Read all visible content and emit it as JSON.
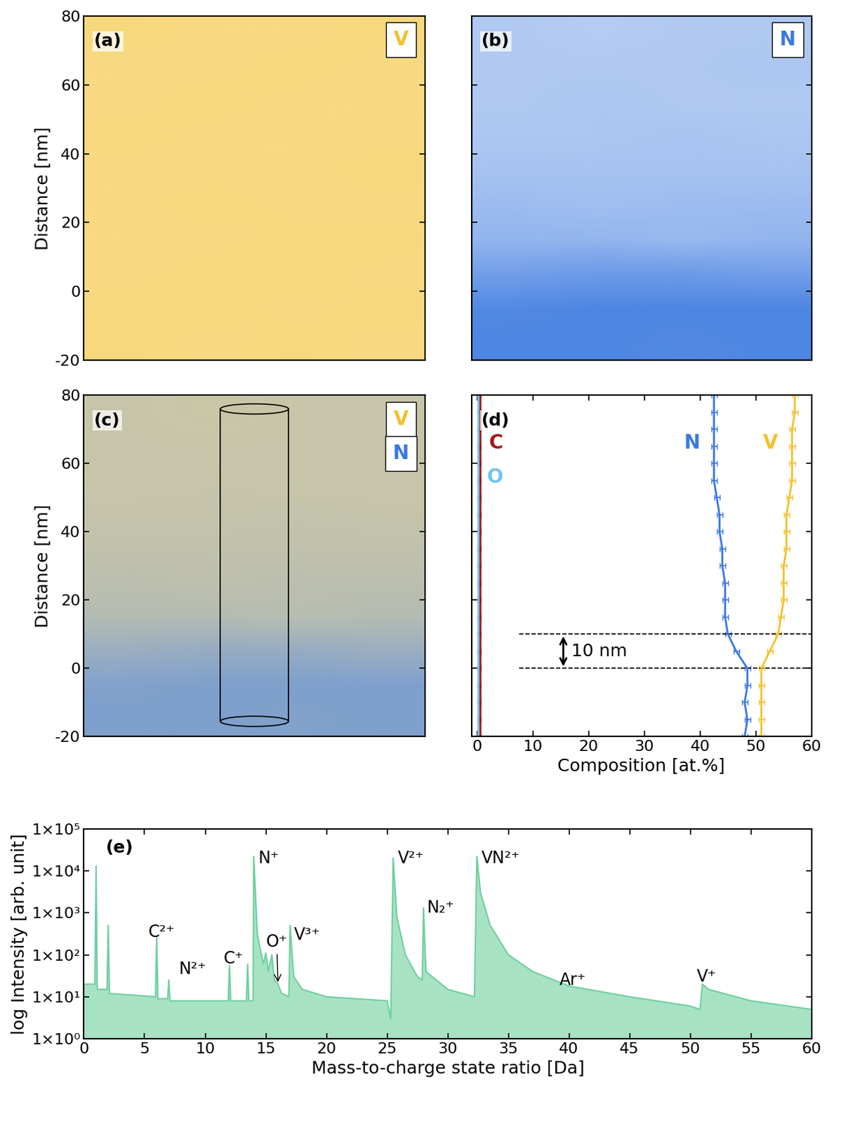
{
  "chart_data": [
    {
      "type": "heatmap",
      "panel": "(a)",
      "ylabel": "Distance [nm]",
      "ylim": [
        -20,
        80
      ],
      "yticks": [
        -20,
        0,
        20,
        40,
        60,
        80
      ],
      "tick_labels": "y",
      "series": [
        {
          "name": "V",
          "color": "#f2c12e",
          "values": [
            [
              0.62,
              0.6,
              0.62,
              0.6
            ],
            [
              0.62,
              0.62,
              0.6,
              0.62
            ],
            [
              0.6,
              0.62,
              0.62,
              0.6
            ],
            [
              0.6,
              0.6,
              0.62,
              0.62
            ],
            [
              0.6,
              0.62,
              0.6,
              0.6
            ],
            [
              0.6,
              0.6,
              0.6,
              0.62
            ],
            [
              0.62,
              0.6,
              0.6,
              0.6
            ],
            [
              0.6,
              0.62,
              0.6,
              0.6
            ],
            [
              0.6,
              0.6,
              0.62,
              0.6
            ],
            [
              0.62,
              0.6,
              0.6,
              0.62
            ]
          ]
        }
      ]
    },
    {
      "type": "heatmap",
      "panel": "(b)",
      "ylim": [
        -20,
        80
      ],
      "yticks": [
        -20,
        0,
        20,
        40,
        60,
        80
      ],
      "tick_labels": false,
      "series": [
        {
          "name": "N",
          "color": "#3a78e0",
          "values": [
            [
              0.9,
              0.9,
              0.88,
              0.9
            ],
            [
              0.88,
              0.9,
              0.9,
              0.9
            ],
            [
              0.72,
              0.75,
              0.75,
              0.72
            ],
            [
              0.55,
              0.55,
              0.52,
              0.55
            ],
            [
              0.5,
              0.48,
              0.5,
              0.5
            ],
            [
              0.45,
              0.45,
              0.45,
              0.45
            ],
            [
              0.42,
              0.42,
              0.44,
              0.42
            ],
            [
              0.4,
              0.42,
              0.4,
              0.4
            ],
            [
              0.4,
              0.4,
              0.4,
              0.42
            ],
            [
              0.4,
              0.38,
              0.4,
              0.4
            ]
          ]
        }
      ]
    },
    {
      "type": "heatmap",
      "panel": "(c)",
      "ylabel": "Distance [nm]",
      "ylim": [
        -20,
        80
      ],
      "yticks": [
        -20,
        0,
        20,
        40,
        60,
        80
      ],
      "tick_labels": "y",
      "series": [
        {
          "name": "V",
          "color": "#f2c12e",
          "values": [
            [
              0.5,
              0.5,
              0.5,
              0.5
            ],
            [
              0.5,
              0.5,
              0.5,
              0.5
            ],
            [
              0.55,
              0.55,
              0.55,
              0.55
            ],
            [
              0.6,
              0.6,
              0.6,
              0.6
            ],
            [
              0.62,
              0.62,
              0.62,
              0.62
            ],
            [
              0.62,
              0.62,
              0.62,
              0.62
            ],
            [
              0.62,
              0.62,
              0.62,
              0.62
            ],
            [
              0.62,
              0.62,
              0.62,
              0.62
            ],
            [
              0.62,
              0.62,
              0.62,
              0.62
            ],
            [
              0.62,
              0.62,
              0.62,
              0.62
            ]
          ]
        },
        {
          "name": "N",
          "color": "#3a78e0",
          "values": [
            [
              0.8,
              0.8,
              0.78,
              0.8
            ],
            [
              0.78,
              0.8,
              0.8,
              0.8
            ],
            [
              0.62,
              0.65,
              0.65,
              0.62
            ],
            [
              0.45,
              0.45,
              0.42,
              0.45
            ],
            [
              0.4,
              0.38,
              0.4,
              0.4
            ],
            [
              0.36,
              0.36,
              0.36,
              0.36
            ],
            [
              0.34,
              0.34,
              0.35,
              0.34
            ],
            [
              0.32,
              0.33,
              0.32,
              0.32
            ],
            [
              0.32,
              0.32,
              0.32,
              0.33
            ],
            [
              0.32,
              0.3,
              0.32,
              0.32
            ]
          ]
        }
      ]
    },
    {
      "type": "line",
      "panel": "(d)",
      "xlabel": "Composition [at.%]",
      "xlim": [
        -1,
        60
      ],
      "xticks": [
        0,
        10,
        20,
        30,
        40,
        50,
        60
      ],
      "ylim": [
        -20,
        80
      ],
      "yticks": [
        -20,
        0,
        20,
        40,
        60,
        80
      ],
      "tick_labels": "x",
      "y": [
        -20,
        -15,
        -10,
        -5,
        0,
        5,
        10,
        15,
        20,
        25,
        30,
        35,
        40,
        45,
        50,
        55,
        60,
        65,
        70,
        75,
        80
      ],
      "series": [
        {
          "name": "C",
          "color": "#a31a1a",
          "values": [
            0.6,
            0.6,
            0.6,
            0.6,
            0.6,
            0.6,
            0.6,
            0.6,
            0.6,
            0.6,
            0.6,
            0.6,
            0.6,
            0.6,
            0.6,
            0.6,
            0.6,
            0.6,
            0.6,
            0.6,
            0.6
          ],
          "errors": [
            0.1,
            0.1,
            0.1,
            0.1,
            0.1,
            0.1,
            0.1,
            0.1,
            0.1,
            0.1,
            0.1,
            0.1,
            0.1,
            0.1,
            0.1,
            0.1,
            0.1,
            0.1,
            0.1,
            0.1,
            0.1
          ]
        },
        {
          "name": "O",
          "color": "#6ec6f0",
          "values": [
            0.2,
            0.2,
            0.2,
            0.2,
            0.2,
            0.2,
            0.2,
            0.2,
            0.2,
            0.2,
            0.2,
            0.2,
            0.2,
            0.2,
            0.2,
            0.2,
            0.2,
            0.2,
            0.2,
            0.2,
            0.2
          ],
          "errors": [
            0.1,
            0.1,
            0.1,
            0.1,
            0.1,
            0.1,
            0.1,
            0.1,
            0.1,
            0.1,
            0.1,
            0.1,
            0.1,
            0.1,
            0.1,
            0.1,
            0.1,
            0.1,
            0.1,
            0.1,
            0.1
          ]
        },
        {
          "name": "N",
          "color": "#3a78e0",
          "values": [
            48,
            48.5,
            48,
            48.5,
            48.5,
            46.5,
            45,
            44.5,
            44.5,
            44.5,
            44,
            44,
            43.5,
            43.5,
            43,
            42.5,
            42.5,
            42.5,
            42.5,
            42.5,
            42.5
          ],
          "errors": [
            0.5,
            0.5,
            0.5,
            0.5,
            0.5,
            0.5,
            0.5,
            0.5,
            0.5,
            0.5,
            0.5,
            0.5,
            0.5,
            0.5,
            0.5,
            0.5,
            0.5,
            0.5,
            0.5,
            0.5,
            0.5
          ]
        },
        {
          "name": "V",
          "color": "#f2c12e",
          "values": [
            51,
            51,
            51,
            51,
            51,
            52.5,
            54,
            54.5,
            55,
            55,
            55,
            55.5,
            55.5,
            55.5,
            56,
            56.5,
            56.5,
            56.5,
            56.5,
            57,
            57
          ],
          "errors": [
            0.5,
            0.5,
            0.5,
            0.5,
            0.5,
            0.5,
            0.5,
            0.5,
            0.5,
            0.5,
            0.5,
            0.5,
            0.5,
            0.5,
            0.5,
            0.5,
            0.5,
            0.5,
            0.5,
            0.5,
            0.5
          ]
        }
      ],
      "annotations": [
        {
          "text": "10 nm",
          "y": [
            0,
            10
          ]
        }
      ]
    },
    {
      "type": "line",
      "panel": "(e)",
      "xlabel": "Mass-to-charge state ratio [Da]",
      "ylabel": "log Intensity [arb. unit]",
      "log": "y",
      "color": "#6fcf9f",
      "xlim": [
        0,
        60
      ],
      "xticks": [
        0,
        5,
        10,
        15,
        20,
        25,
        30,
        35,
        40,
        45,
        50,
        55,
        60
      ],
      "ylim": [
        1,
        100000
      ],
      "yticks": [
        {
          "value": 1,
          "label": "1×10⁰"
        },
        {
          "value": 10,
          "label": "1×10¹"
        },
        {
          "value": 100,
          "label": "1×10²"
        },
        {
          "value": 1000,
          "label": "1×10³"
        },
        {
          "value": 10000,
          "label": "1×10⁴"
        },
        {
          "value": 100000,
          "label": "1×10⁵"
        }
      ],
      "x": [
        0,
        0.9,
        1.0,
        1.1,
        1.9,
        2.0,
        2.1,
        5.9,
        6.0,
        6.1,
        6.9,
        7.0,
        7.1,
        11.9,
        12.0,
        12.1,
        13.4,
        13.5,
        13.6,
        13.95,
        14.0,
        14.3,
        14.8,
        15.0,
        15.2,
        15.5,
        15.7,
        16.0,
        16.3,
        16.9,
        17.0,
        17.3,
        18,
        20,
        25,
        25.3,
        25.5,
        25.8,
        26.5,
        27.5,
        27.9,
        28.0,
        28.2,
        30,
        32.2,
        32.4,
        32.7,
        33.5,
        35,
        37,
        40,
        45,
        50,
        50.8,
        51.0,
        51.5,
        55,
        60
      ],
      "values": [
        20,
        20,
        13000,
        15,
        15,
        500,
        12,
        10,
        270,
        9,
        9,
        25,
        8,
        8,
        55,
        8,
        8,
        60,
        8,
        8,
        22000,
        300,
        60,
        110,
        40,
        100,
        25,
        20,
        12,
        10,
        500,
        30,
        15,
        10,
        8,
        3,
        20000,
        800,
        100,
        30,
        25,
        1300,
        40,
        15,
        10,
        22000,
        3000,
        500,
        100,
        40,
        18,
        10,
        6,
        5,
        20,
        15,
        8,
        5
      ],
      "annotations": [
        {
          "text": "C²⁺",
          "x": 5.3,
          "y": 350
        },
        {
          "text": "N²⁺",
          "x": 7.8,
          "y": 45
        },
        {
          "text": "C⁺",
          "x": 11.5,
          "y": 80
        },
        {
          "text": "O⁺",
          "x": 15.0,
          "y": 200,
          "xy": [
            16,
            20
          ]
        },
        {
          "text": "V³⁺",
          "x": 17.3,
          "y": 300
        },
        {
          "text": "N⁺",
          "x": 14.4,
          "y": 20000
        },
        {
          "text": "V²⁺",
          "x": 25.9,
          "y": 20000
        },
        {
          "text": "VN²⁺",
          "x": 32.8,
          "y": 20000
        },
        {
          "text": "N₂⁺",
          "x": 28.3,
          "y": 1300
        },
        {
          "text": "Ar⁺",
          "x": 39.2,
          "y": 25
        },
        {
          "text": "V⁺",
          "x": 50.5,
          "y": 30
        }
      ]
    }
  ]
}
